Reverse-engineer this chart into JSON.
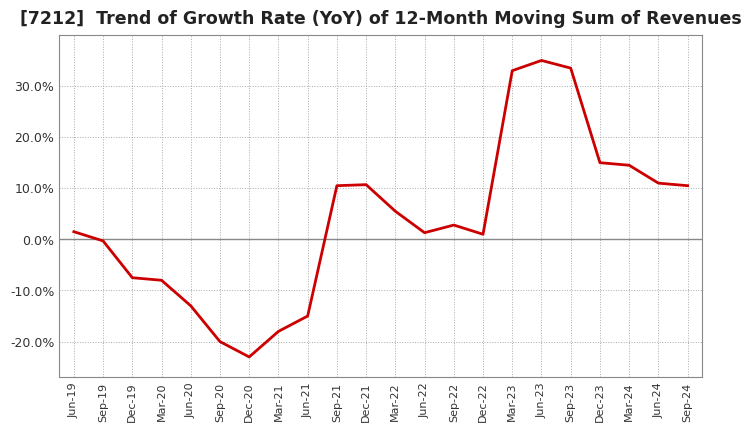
{
  "title": "[7212]  Trend of Growth Rate (YoY) of 12-Month Moving Sum of Revenues",
  "title_fontsize": 12.5,
  "line_color": "#cc0000",
  "bg_color": "#ffffff",
  "grid_color": "#aaaaaa",
  "zero_line_color": "#888888",
  "ylim": [
    -0.27,
    0.4
  ],
  "yticks": [
    -0.2,
    -0.1,
    0.0,
    0.1,
    0.2,
    0.3
  ],
  "dates": [
    "Jun-19",
    "Sep-19",
    "Dec-19",
    "Mar-20",
    "Jun-20",
    "Sep-20",
    "Dec-20",
    "Mar-21",
    "Jun-21",
    "Sep-21",
    "Dec-21",
    "Mar-22",
    "Jun-22",
    "Sep-22",
    "Dec-22",
    "Mar-23",
    "Jun-23",
    "Sep-23",
    "Dec-23",
    "Mar-24",
    "Jun-24",
    "Sep-24"
  ],
  "values": [
    0.015,
    -0.003,
    -0.075,
    -0.08,
    -0.13,
    -0.2,
    -0.23,
    -0.18,
    -0.15,
    0.105,
    0.107,
    0.055,
    0.013,
    0.028,
    0.01,
    0.33,
    0.35,
    0.335,
    0.15,
    0.145,
    0.11,
    0.105
  ]
}
